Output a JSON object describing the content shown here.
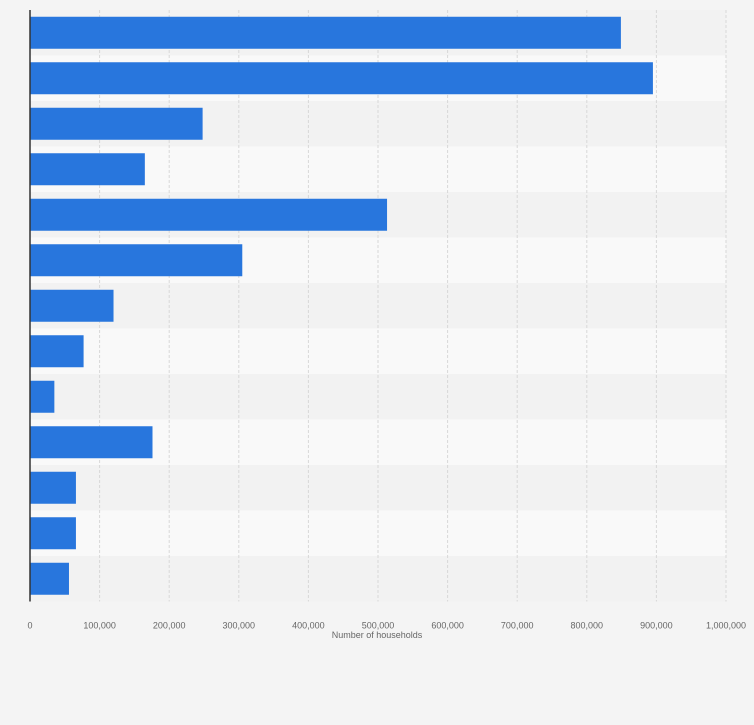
{
  "chart_data": {
    "type": "bar",
    "orientation": "horizontal",
    "categories": [
      "",
      "",
      "",
      "",
      "",
      "",
      "",
      "",
      "",
      "",
      "",
      "",
      ""
    ],
    "values": [
      849000,
      895000,
      248000,
      165000,
      513000,
      305000,
      120000,
      77000,
      35000,
      176000,
      66000,
      66000,
      56000
    ],
    "title": "",
    "xlabel": "Number of households",
    "ylabel": "",
    "xlim": [
      0,
      1000000
    ],
    "xticks": [
      0,
      100000,
      200000,
      300000,
      400000,
      500000,
      600000,
      700000,
      800000,
      900000,
      1000000
    ],
    "xtick_labels": [
      "0",
      "100,000",
      "200,000",
      "300,000",
      "400,000",
      "500,000",
      "600,000",
      "700,000",
      "800,000",
      "900,000",
      "1,000,000"
    ],
    "grid": true,
    "legend": "none",
    "colors": {
      "bar": "#2876dd",
      "band_light": "#f9f9f9",
      "band_dark": "#f2f2f2",
      "grid": "#d8d8d8",
      "axis": "#333333",
      "text": "#666666"
    }
  }
}
